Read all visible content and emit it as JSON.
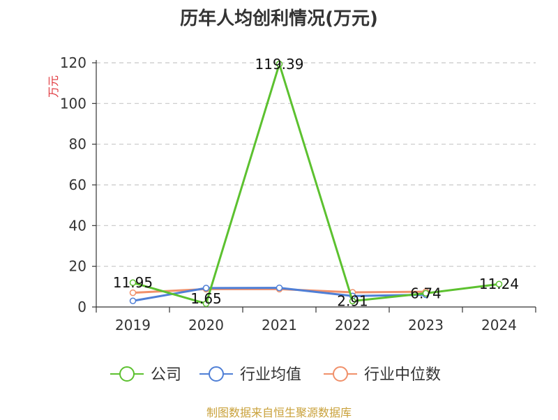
{
  "chart_data": {
    "type": "line",
    "title": "历年人均创利情况(万元)",
    "ylabel": "万元",
    "categories": [
      "2019",
      "2020",
      "2021",
      "2022",
      "2023",
      "2024"
    ],
    "ylim": [
      0,
      120
    ],
    "yticks": [
      0,
      20,
      40,
      60,
      80,
      100,
      120
    ],
    "grid": true,
    "legend_position": "bottom",
    "series": [
      {
        "name": "公司",
        "color": "#5cc12f",
        "values": [
          11.95,
          1.65,
          119.39,
          2.91,
          6.74,
          11.24
        ],
        "labels": [
          "11.95",
          "1.65",
          "119.39",
          "2.91",
          "6.74",
          "11.24"
        ]
      },
      {
        "name": "行业均值",
        "color": "#4f7fd6",
        "values": [
          3.0,
          9.3,
          9.4,
          5.4,
          6.0,
          null
        ]
      },
      {
        "name": "行业中位数",
        "color": "#f0906a",
        "values": [
          7.0,
          8.8,
          8.8,
          7.2,
          7.5,
          null
        ]
      }
    ]
  },
  "source": "制图数据来自恒生聚源数据库"
}
